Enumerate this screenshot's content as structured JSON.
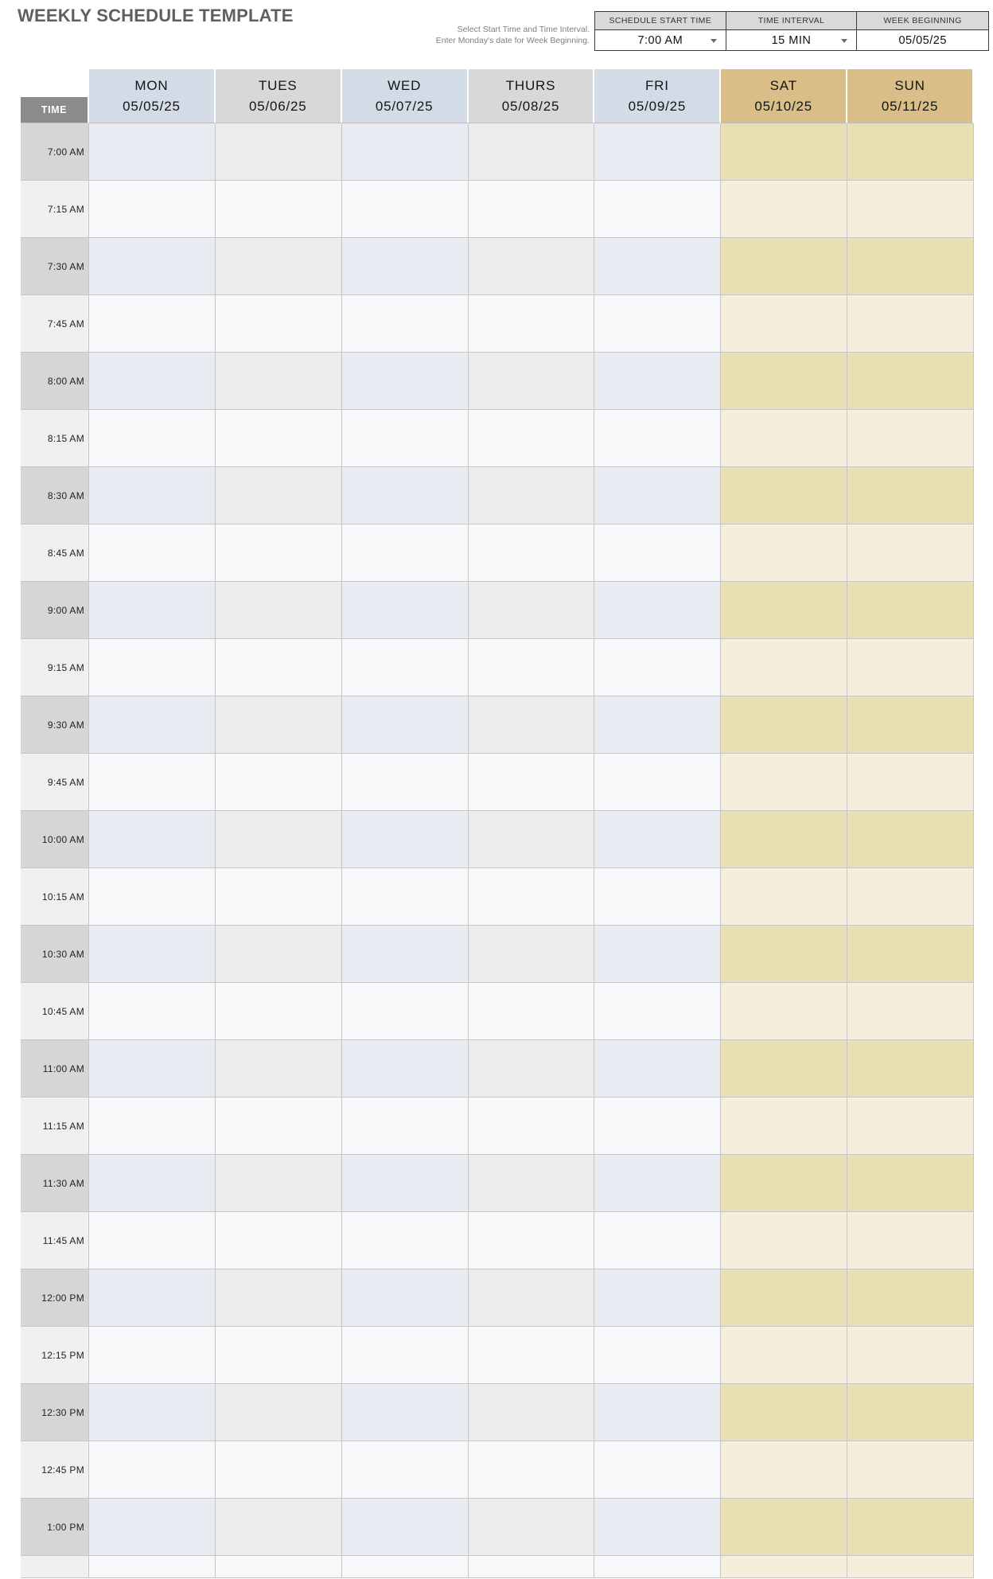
{
  "page": {
    "title": "WEEKLY SCHEDULE TEMPLATE"
  },
  "instructions": {
    "line1": "Select Start Time and Time Interval.",
    "line2": "Enter Monday's date for Week Beginning."
  },
  "controls": [
    {
      "id": "schedule-start-time",
      "label": "SCHEDULE START TIME",
      "value": "7:00 AM",
      "dropdown": true
    },
    {
      "id": "time-interval",
      "label": "TIME INTERVAL",
      "value": "15 MIN",
      "dropdown": true
    },
    {
      "id": "week-beginning",
      "label": "WEEK BEGINNING",
      "value": "05/05/25",
      "dropdown": false
    }
  ],
  "table": {
    "time_header": "TIME",
    "days": [
      {
        "name": "MON",
        "date": "05/05/25",
        "theme": "blue"
      },
      {
        "name": "TUES",
        "date": "05/06/25",
        "theme": "gray"
      },
      {
        "name": "WED",
        "date": "05/07/25",
        "theme": "blue"
      },
      {
        "name": "THURS",
        "date": "05/08/25",
        "theme": "gray"
      },
      {
        "name": "FRI",
        "date": "05/09/25",
        "theme": "blue"
      },
      {
        "name": "SAT",
        "date": "05/10/25",
        "theme": "tan"
      },
      {
        "name": "SUN",
        "date": "05/11/25",
        "theme": "tan"
      }
    ],
    "times": [
      "7:00 AM",
      "7:15 AM",
      "7:30 AM",
      "7:45 AM",
      "8:00 AM",
      "8:15 AM",
      "8:30 AM",
      "8:45 AM",
      "9:00 AM",
      "9:15 AM",
      "9:30 AM",
      "9:45 AM",
      "10:00 AM",
      "10:15 AM",
      "10:30 AM",
      "10:45 AM",
      "11:00 AM",
      "11:15 AM",
      "11:30 AM",
      "11:45 AM",
      "12:00 PM",
      "12:15 PM",
      "12:30 PM",
      "12:45 PM",
      "1:00 PM"
    ],
    "partial_row_at_bottom": true
  },
  "colors": {
    "blue": {
      "header": "#d3dce6",
      "dark": "#e8ebf1",
      "light": "#f6f8fa"
    },
    "gray": {
      "header": "#d8d8d8",
      "dark": "#ececec",
      "light": "#f8f8f8"
    },
    "tan": {
      "header": "#d9be88",
      "dark": "#e8dfb2",
      "light": "#f5eedc"
    },
    "time_col": {
      "header": "#8b8b8b",
      "dark": "#d6d6d6",
      "light": "#f0f0f0"
    }
  }
}
